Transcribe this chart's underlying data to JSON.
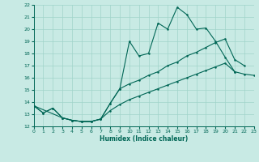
{
  "xlabel": "Humidex (Indice chaleur)",
  "bg_color": "#c8eae4",
  "grid_color": "#a0d4ca",
  "line_color": "#006655",
  "xlim": [
    0,
    23
  ],
  "ylim": [
    12,
    22
  ],
  "xticks": [
    0,
    1,
    2,
    3,
    4,
    5,
    6,
    7,
    8,
    9,
    10,
    11,
    12,
    13,
    14,
    15,
    16,
    17,
    18,
    19,
    20,
    21,
    22,
    23
  ],
  "yticks": [
    12,
    13,
    14,
    15,
    16,
    17,
    18,
    19,
    20,
    21,
    22
  ],
  "line1": [
    [
      0,
      13.7
    ],
    [
      1,
      13.1
    ],
    [
      2,
      13.5
    ],
    [
      3,
      12.7
    ],
    [
      4,
      12.5
    ],
    [
      5,
      12.4
    ],
    [
      6,
      12.4
    ],
    [
      7,
      12.6
    ],
    [
      8,
      13.9
    ],
    [
      9,
      15.1
    ],
    [
      10,
      19.0
    ],
    [
      11,
      17.8
    ],
    [
      12,
      18.0
    ],
    [
      13,
      20.5
    ],
    [
      14,
      20.0
    ],
    [
      15,
      21.8
    ],
    [
      16,
      21.2
    ],
    [
      17,
      20.0
    ],
    [
      18,
      20.1
    ],
    [
      19,
      19.0
    ],
    [
      20,
      17.7
    ],
    [
      21,
      16.5
    ]
  ],
  "line2": [
    [
      0,
      13.7
    ],
    [
      1,
      13.1
    ],
    [
      2,
      13.5
    ],
    [
      3,
      12.7
    ],
    [
      4,
      12.5
    ],
    [
      5,
      12.4
    ],
    [
      6,
      12.4
    ],
    [
      7,
      12.6
    ],
    [
      8,
      13.9
    ],
    [
      9,
      15.1
    ],
    [
      10,
      15.5
    ],
    [
      11,
      15.8
    ],
    [
      12,
      16.2
    ],
    [
      13,
      16.5
    ],
    [
      14,
      17.0
    ],
    [
      15,
      17.3
    ],
    [
      16,
      17.8
    ],
    [
      17,
      18.1
    ],
    [
      18,
      18.5
    ],
    [
      19,
      18.9
    ],
    [
      20,
      19.2
    ],
    [
      21,
      17.5
    ],
    [
      22,
      17.0
    ]
  ],
  "line3": [
    [
      0,
      13.7
    ],
    [
      3,
      12.7
    ],
    [
      4,
      12.5
    ],
    [
      5,
      12.4
    ],
    [
      6,
      12.4
    ],
    [
      7,
      12.6
    ],
    [
      8,
      13.3
    ],
    [
      9,
      13.8
    ],
    [
      10,
      14.2
    ],
    [
      11,
      14.5
    ],
    [
      12,
      14.8
    ],
    [
      13,
      15.1
    ],
    [
      14,
      15.4
    ],
    [
      15,
      15.7
    ],
    [
      16,
      16.0
    ],
    [
      17,
      16.3
    ],
    [
      18,
      16.6
    ],
    [
      19,
      16.9
    ],
    [
      20,
      17.2
    ],
    [
      21,
      16.5
    ],
    [
      22,
      16.3
    ],
    [
      23,
      16.2
    ]
  ]
}
